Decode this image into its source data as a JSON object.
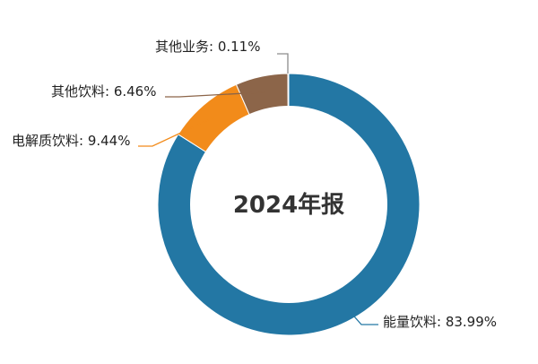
{
  "chart_data": {
    "type": "pie",
    "style": "donut",
    "center_text": "2024年报",
    "slices": [
      {
        "name": "能量饮料",
        "value": 83.99,
        "label": "能量饮料: 83.99%",
        "color": "#2377a4"
      },
      {
        "name": "电解质饮料",
        "value": 9.44,
        "label": "电解质饮料: 9.44%",
        "color": "#f28b1a"
      },
      {
        "name": "其他饮料",
        "value": 6.46,
        "label": "其他饮料: 6.46%",
        "color": "#8c6549"
      },
      {
        "name": "其他业务",
        "value": 0.11,
        "label": "其他业务: 0.11%",
        "color": "#8c8c8c"
      }
    ]
  }
}
